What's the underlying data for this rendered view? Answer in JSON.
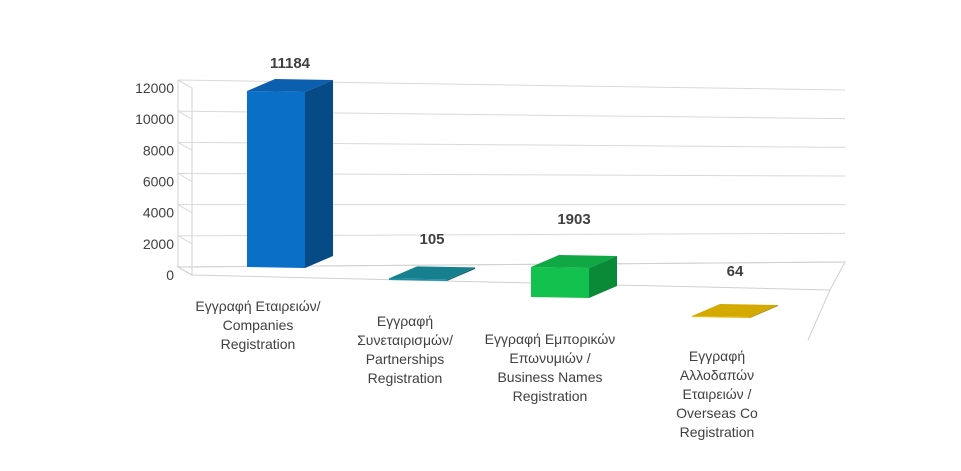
{
  "chart_data": {
    "type": "bar",
    "style": "3d-column",
    "categories": [
      [
        "Εγγραφή Εταιρειών/",
        "Companies",
        "Registration"
      ],
      [
        "Εγγραφή",
        "Συνεταιρισμών/",
        "Partnerships",
        "Registration"
      ],
      [
        "Εγγραφή Εμπορικών",
        "Επωνυμιών /",
        "Business Names",
        "Registration"
      ],
      [
        "Εγγραφή",
        "Αλλοδαπών",
        "Εταιρειών /",
        "Overseas Co",
        "Registration"
      ]
    ],
    "values": [
      11184,
      105,
      1903,
      64
    ],
    "data_labels": [
      "11184",
      "105",
      "1903",
      "64"
    ],
    "ylim": [
      0,
      12000
    ],
    "yticks": [
      "0",
      "2000",
      "4000",
      "6000",
      "8000",
      "10000",
      "12000"
    ],
    "grid": true,
    "legend": "none",
    "colors": [
      {
        "front": "#0a6fc7",
        "side": "#064a86",
        "top": "#0b5fae"
      },
      {
        "front": "#1b8fa6",
        "side": "#136878",
        "top": "#17808f"
      },
      {
        "front": "#13c24e",
        "side": "#0a8a37",
        "top": "#0fa844"
      },
      {
        "front": "#e6b800",
        "side": "#a88500",
        "top": "#d4a900"
      }
    ]
  }
}
